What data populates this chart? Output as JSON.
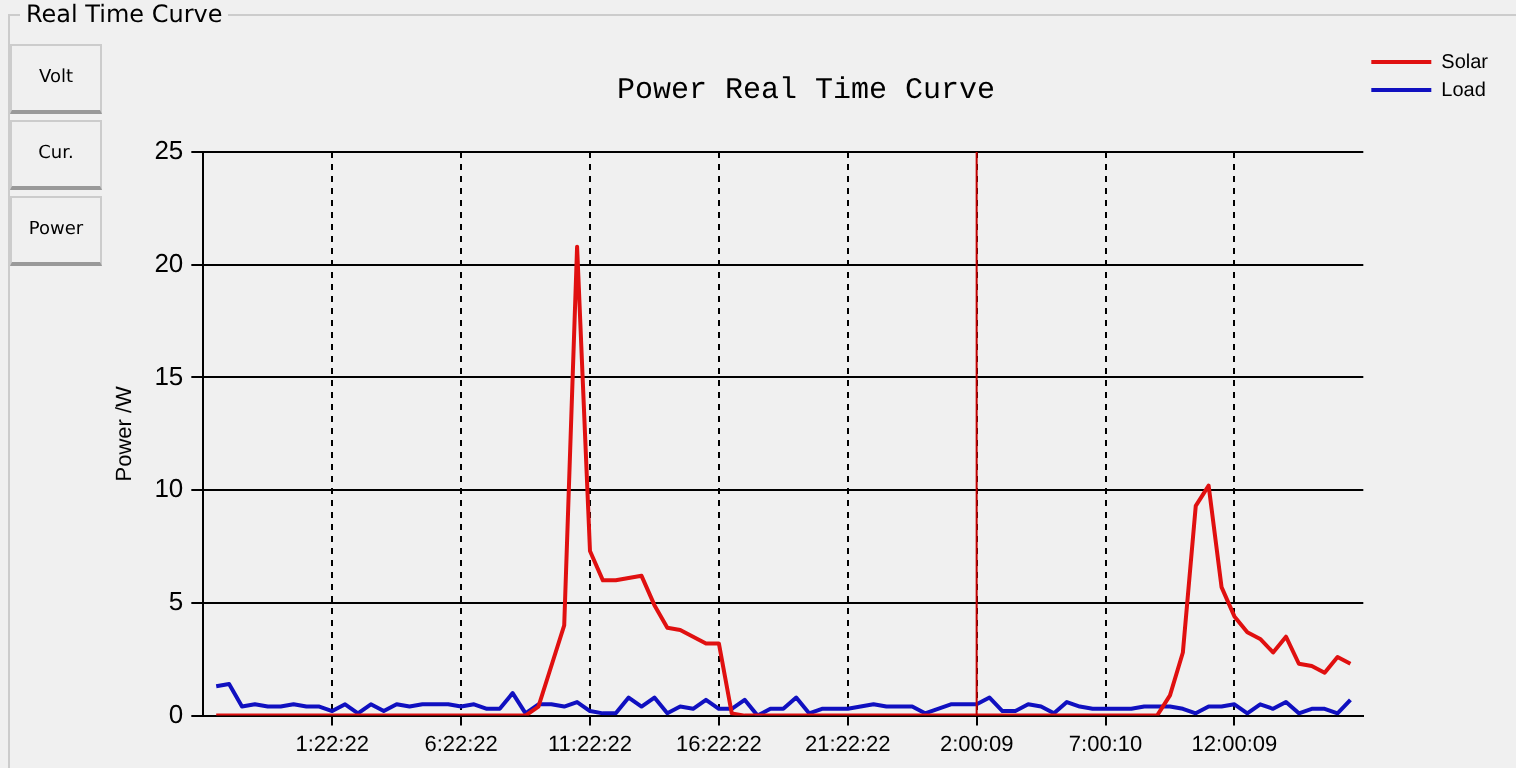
{
  "chart_data": {
    "type": "line",
    "title": "Power Real Time Curve",
    "ylabel": "Power /W",
    "annotations": [
      "Real Time Curve",
      "Volt",
      "Cur.",
      "Power"
    ],
    "categories": [
      null,
      null,
      null,
      null,
      null,
      null,
      null,
      null,
      null,
      null,
      "1:22:22",
      null,
      null,
      null,
      null,
      null,
      null,
      null,
      null,
      null,
      "6:22:22",
      null,
      null,
      null,
      null,
      null,
      null,
      null,
      null,
      null,
      "11:22:22",
      null,
      null,
      null,
      null,
      null,
      null,
      null,
      null,
      null,
      "16:22:22",
      null,
      null,
      null,
      null,
      null,
      null,
      null,
      null,
      null,
      "21:22:22",
      null,
      null,
      null,
      null,
      null,
      null,
      null,
      null,
      null,
      "2:00:09",
      null,
      null,
      null,
      null,
      null,
      null,
      null,
      null,
      null,
      "7:00:10",
      null,
      null,
      null,
      null,
      null,
      null,
      null,
      null,
      null,
      "12:00:09",
      null,
      null,
      null,
      null,
      null,
      null,
      null,
      null,
      null,
      null
    ],
    "ylim": [
      0,
      25
    ],
    "yticks": [
      0,
      5,
      10,
      15,
      20,
      25
    ],
    "grid": true,
    "legend": "top right",
    "marker": "none",
    "line_style": "solid",
    "ref_lines": [
      {
        "axis": "x",
        "value": "2:00:09",
        "color": "#c00000"
      }
    ],
    "series": [
      {
        "name": "Solar",
        "color": "#e01010",
        "values": [
          null,
          0,
          0,
          0,
          0,
          0,
          0,
          0,
          0,
          0,
          0,
          0,
          0,
          0,
          0,
          0,
          0,
          0,
          0,
          0,
          0,
          0,
          0,
          0,
          0,
          0,
          0.4,
          2.2,
          4.0,
          20.8,
          7.3,
          6.0,
          6.0,
          6.1,
          6.2,
          4.9,
          3.9,
          3.8,
          3.5,
          3.2,
          3.2,
          0.1,
          0,
          0,
          0,
          0,
          0,
          0,
          0,
          0,
          0,
          0,
          0,
          0,
          0,
          0,
          0,
          0,
          0,
          0,
          0,
          0,
          0,
          0,
          0,
          0,
          0,
          0,
          0,
          0,
          0,
          0,
          0,
          0,
          0,
          0.9,
          2.8,
          9.3,
          10.2,
          5.7,
          4.4,
          3.7,
          3.4,
          2.8,
          3.5,
          2.3,
          2.2,
          1.9,
          2.6,
          2.3,
          null
        ]
      },
      {
        "name": "Load",
        "color": "#1010c0",
        "values": [
          null,
          1.3,
          1.4,
          0.4,
          0.5,
          0.4,
          0.4,
          0.5,
          0.4,
          0.4,
          0.2,
          0.5,
          0.1,
          0.5,
          0.2,
          0.5,
          0.4,
          0.5,
          0.5,
          0.5,
          0.4,
          0.5,
          0.3,
          0.3,
          1.0,
          0.1,
          0.5,
          0.5,
          0.4,
          0.6,
          0.2,
          0.1,
          0.1,
          0.8,
          0.4,
          0.8,
          0.1,
          0.4,
          0.3,
          0.7,
          0.3,
          0.3,
          0.7,
          0,
          0.3,
          0.3,
          0.8,
          0.1,
          0.3,
          0.3,
          0.3,
          0.4,
          0.5,
          0.4,
          0.4,
          0.4,
          0.1,
          0.3,
          0.5,
          0.5,
          0.5,
          0.8,
          0.2,
          0.2,
          0.5,
          0.4,
          0.1,
          0.6,
          0.4,
          0.3,
          0.3,
          0.3,
          0.3,
          0.4,
          0.4,
          0.4,
          0.3,
          0.1,
          0.4,
          0.4,
          0.5,
          0.1,
          0.5,
          0.3,
          0.6,
          0.1,
          0.3,
          0.3,
          0.1,
          0.7,
          null
        ]
      }
    ]
  }
}
